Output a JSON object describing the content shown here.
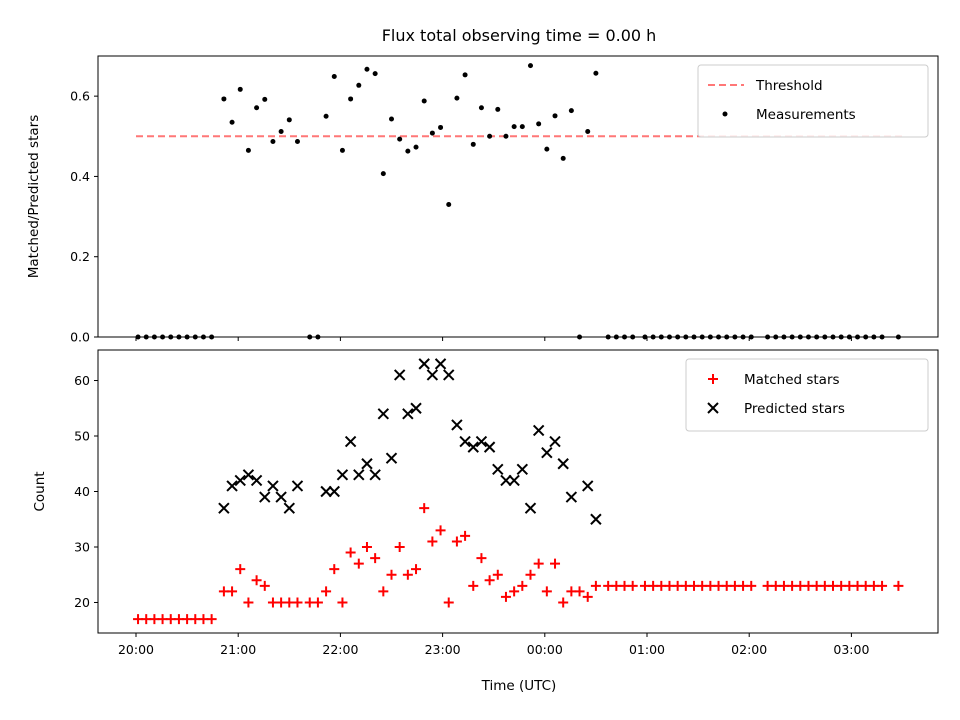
{
  "title": "Flux total observing time = 0.00 h",
  "xlabel": "Time (UTC)",
  "x_tick_labels": [
    "20:00",
    "21:00",
    "22:00",
    "23:00",
    "00:00",
    "01:00",
    "02:00",
    "03:00"
  ],
  "chart_data": [
    {
      "type": "scatter",
      "panel": "top",
      "ylabel": "Matched/Predicted stars",
      "ylim": [
        0,
        0.7
      ],
      "yticks": [
        0.0,
        0.2,
        0.4,
        0.6
      ],
      "ytick_labels": [
        "0.0",
        "0.2",
        "0.4",
        "0.6"
      ],
      "x_unit": "hours since 20:00 UTC",
      "threshold": {
        "name": "Threshold",
        "value": 0.5,
        "x_range": [
          0,
          7.5
        ],
        "color": "#ff7777"
      },
      "legend_placement": "upper-right",
      "series": [
        {
          "name": "Measurements",
          "color": "#000000",
          "marker": "dot",
          "points": [
            [
              0.02,
              0
            ],
            [
              0.1,
              0
            ],
            [
              0.18,
              0
            ],
            [
              0.26,
              0
            ],
            [
              0.34,
              0
            ],
            [
              0.42,
              0
            ],
            [
              0.5,
              0
            ],
            [
              0.58,
              0
            ],
            [
              0.66,
              0
            ],
            [
              0.74,
              0
            ],
            [
              0.86,
              0.593
            ],
            [
              0.94,
              0.535
            ],
            [
              1.02,
              0.617
            ],
            [
              1.1,
              0.465
            ],
            [
              1.18,
              0.571
            ],
            [
              1.26,
              0.592
            ],
            [
              1.34,
              0.487
            ],
            [
              1.42,
              0.512
            ],
            [
              1.5,
              0.541
            ],
            [
              1.58,
              0.487
            ],
            [
              1.7,
              0
            ],
            [
              1.78,
              0
            ],
            [
              1.86,
              0.55
            ],
            [
              1.94,
              0.649
            ],
            [
              2.02,
              0.465
            ],
            [
              2.1,
              0.593
            ],
            [
              2.18,
              0.627
            ],
            [
              2.26,
              0.667
            ],
            [
              2.34,
              0.656
            ],
            [
              2.42,
              0.407
            ],
            [
              2.5,
              0.543
            ],
            [
              2.58,
              0.493
            ],
            [
              2.66,
              0.463
            ],
            [
              2.74,
              0.473
            ],
            [
              2.82,
              0.588
            ],
            [
              2.9,
              0.508
            ],
            [
              2.98,
              0.522
            ],
            [
              3.06,
              0.33
            ],
            [
              3.14,
              0.595
            ],
            [
              3.22,
              0.653
            ],
            [
              3.3,
              0.48
            ],
            [
              3.38,
              0.571
            ],
            [
              3.46,
              0.5
            ],
            [
              3.54,
              0.567
            ],
            [
              3.62,
              0.5
            ],
            [
              3.7,
              0.524
            ],
            [
              3.78,
              0.524
            ],
            [
              3.86,
              0.676
            ],
            [
              3.94,
              0.531
            ],
            [
              4.02,
              0.468
            ],
            [
              4.1,
              0.551
            ],
            [
              4.18,
              0.445
            ],
            [
              4.26,
              0.564
            ],
            [
              4.34,
              0
            ],
            [
              4.42,
              0.512
            ],
            [
              4.5,
              0.657
            ],
            [
              4.62,
              0
            ],
            [
              4.7,
              0
            ],
            [
              4.78,
              0
            ],
            [
              4.86,
              0
            ],
            [
              4.98,
              0
            ],
            [
              5.06,
              0
            ],
            [
              5.14,
              0
            ],
            [
              5.22,
              0
            ],
            [
              5.3,
              0
            ],
            [
              5.38,
              0
            ],
            [
              5.46,
              0
            ],
            [
              5.54,
              0
            ],
            [
              5.62,
              0
            ],
            [
              5.7,
              0
            ],
            [
              5.78,
              0
            ],
            [
              5.86,
              0
            ],
            [
              5.94,
              0
            ],
            [
              6.02,
              0
            ],
            [
              6.18,
              0
            ],
            [
              6.26,
              0
            ],
            [
              6.34,
              0
            ],
            [
              6.42,
              0
            ],
            [
              6.5,
              0
            ],
            [
              6.58,
              0
            ],
            [
              6.66,
              0
            ],
            [
              6.74,
              0
            ],
            [
              6.82,
              0
            ],
            [
              6.9,
              0
            ],
            [
              6.98,
              0
            ],
            [
              7.06,
              0
            ],
            [
              7.14,
              0
            ],
            [
              7.22,
              0
            ],
            [
              7.3,
              0
            ],
            [
              7.46,
              0
            ]
          ]
        }
      ]
    },
    {
      "type": "scatter",
      "panel": "bottom",
      "ylabel": "Count",
      "ylim": [
        14.5,
        65.5
      ],
      "yticks": [
        20,
        30,
        40,
        50,
        60
      ],
      "ytick_labels": [
        "20",
        "30",
        "40",
        "50",
        "60"
      ],
      "x_unit": "hours since 20:00 UTC",
      "legend_placement": "upper-right",
      "series": [
        {
          "name": "Matched stars",
          "color": "#ff0000",
          "marker": "plus",
          "points": [
            [
              0.02,
              17
            ],
            [
              0.1,
              17
            ],
            [
              0.18,
              17
            ],
            [
              0.26,
              17
            ],
            [
              0.34,
              17
            ],
            [
              0.42,
              17
            ],
            [
              0.5,
              17
            ],
            [
              0.58,
              17
            ],
            [
              0.66,
              17
            ],
            [
              0.74,
              17
            ],
            [
              0.86,
              22
            ],
            [
              0.94,
              22
            ],
            [
              1.02,
              26
            ],
            [
              1.1,
              20
            ],
            [
              1.18,
              24
            ],
            [
              1.26,
              23
            ],
            [
              1.34,
              20
            ],
            [
              1.42,
              20
            ],
            [
              1.5,
              20
            ],
            [
              1.58,
              20
            ],
            [
              1.7,
              20
            ],
            [
              1.78,
              20
            ],
            [
              1.86,
              22
            ],
            [
              1.94,
              26
            ],
            [
              2.02,
              20
            ],
            [
              2.1,
              29
            ],
            [
              2.18,
              27
            ],
            [
              2.26,
              30
            ],
            [
              2.34,
              28
            ],
            [
              2.42,
              22
            ],
            [
              2.5,
              25
            ],
            [
              2.58,
              30
            ],
            [
              2.66,
              25
            ],
            [
              2.74,
              26
            ],
            [
              2.82,
              37
            ],
            [
              2.9,
              31
            ],
            [
              2.98,
              33
            ],
            [
              3.06,
              20
            ],
            [
              3.14,
              31
            ],
            [
              3.22,
              32
            ],
            [
              3.3,
              23
            ],
            [
              3.38,
              28
            ],
            [
              3.46,
              24
            ],
            [
              3.54,
              25
            ],
            [
              3.62,
              21
            ],
            [
              3.7,
              22
            ],
            [
              3.78,
              23
            ],
            [
              3.86,
              25
            ],
            [
              3.94,
              27
            ],
            [
              4.02,
              22
            ],
            [
              4.1,
              27
            ],
            [
              4.18,
              20
            ],
            [
              4.26,
              22
            ],
            [
              4.34,
              22
            ],
            [
              4.42,
              21
            ],
            [
              4.5,
              23
            ],
            [
              4.62,
              23
            ],
            [
              4.7,
              23
            ],
            [
              4.78,
              23
            ],
            [
              4.86,
              23
            ],
            [
              4.98,
              23
            ],
            [
              5.06,
              23
            ],
            [
              5.14,
              23
            ],
            [
              5.22,
              23
            ],
            [
              5.3,
              23
            ],
            [
              5.38,
              23
            ],
            [
              5.46,
              23
            ],
            [
              5.54,
              23
            ],
            [
              5.62,
              23
            ],
            [
              5.7,
              23
            ],
            [
              5.78,
              23
            ],
            [
              5.86,
              23
            ],
            [
              5.94,
              23
            ],
            [
              6.02,
              23
            ],
            [
              6.18,
              23
            ],
            [
              6.26,
              23
            ],
            [
              6.34,
              23
            ],
            [
              6.42,
              23
            ],
            [
              6.5,
              23
            ],
            [
              6.58,
              23
            ],
            [
              6.66,
              23
            ],
            [
              6.74,
              23
            ],
            [
              6.82,
              23
            ],
            [
              6.9,
              23
            ],
            [
              6.98,
              23
            ],
            [
              7.06,
              23
            ],
            [
              7.14,
              23
            ],
            [
              7.22,
              23
            ],
            [
              7.3,
              23
            ],
            [
              7.46,
              23
            ]
          ]
        },
        {
          "name": "Predicted stars",
          "color": "#000000",
          "marker": "x",
          "points": [
            [
              0.86,
              37
            ],
            [
              0.94,
              41
            ],
            [
              1.02,
              42
            ],
            [
              1.1,
              43
            ],
            [
              1.18,
              42
            ],
            [
              1.26,
              39
            ],
            [
              1.34,
              41
            ],
            [
              1.42,
              39
            ],
            [
              1.5,
              37
            ],
            [
              1.58,
              41
            ],
            [
              1.86,
              40
            ],
            [
              1.94,
              40
            ],
            [
              2.02,
              43
            ],
            [
              2.1,
              49
            ],
            [
              2.18,
              43
            ],
            [
              2.26,
              45
            ],
            [
              2.34,
              43
            ],
            [
              2.42,
              54
            ],
            [
              2.5,
              46
            ],
            [
              2.58,
              61
            ],
            [
              2.66,
              54
            ],
            [
              2.74,
              55
            ],
            [
              2.82,
              63
            ],
            [
              2.9,
              61
            ],
            [
              2.98,
              63
            ],
            [
              3.06,
              61
            ],
            [
              3.14,
              52
            ],
            [
              3.22,
              49
            ],
            [
              3.3,
              48
            ],
            [
              3.38,
              49
            ],
            [
              3.46,
              48
            ],
            [
              3.54,
              44
            ],
            [
              3.62,
              42
            ],
            [
              3.7,
              42
            ],
            [
              3.78,
              44
            ],
            [
              3.86,
              37
            ],
            [
              3.94,
              51
            ],
            [
              4.02,
              47
            ],
            [
              4.1,
              49
            ],
            [
              4.18,
              45
            ],
            [
              4.26,
              39
            ],
            [
              4.42,
              41
            ],
            [
              4.5,
              35
            ]
          ]
        }
      ]
    }
  ]
}
